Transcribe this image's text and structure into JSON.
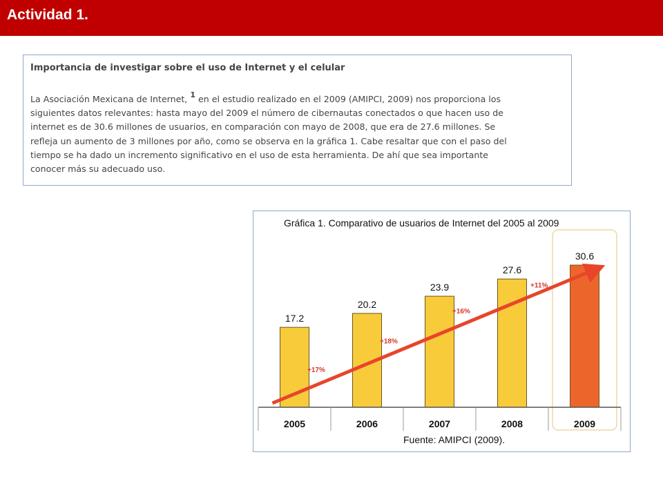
{
  "header": {
    "title": "Actividad 1."
  },
  "article": {
    "heading": "Importancia de investigar sobre el uso de Internet y el celular",
    "lines": [
      "La Asociación Mexicana de Internet, ",
      "1",
      " en el estudio realizado en el 2009 (AMIPCI, 2009) nos proporciona los",
      "siguientes datos relevantes: hasta mayo del 2009 el número de cibernautas conectados o que hacen uso de",
      "internet es de 30.6 millones de usuarios, en comparación con mayo de 2008, que era de 27.6 millones. Se",
      "refleja un aumento de 3 millones por año, como se observa en la gráfica 1. Cabe resaltar que con el paso del",
      "tiempo se ha dado un incremento significativo en el uso de esta herramienta. De ahí que sea importante",
      "conocer más su adecuado uso."
    ]
  },
  "chart_data": {
    "type": "bar",
    "title": "Gráfica 1. Comparativo de usuarios de Internet del 2005 al 2009",
    "source": "Fuente: AMIPCI (2009).",
    "categories": [
      "2005",
      "2006",
      "2007",
      "2008",
      "2009"
    ],
    "values": [
      17.2,
      20.2,
      23.9,
      27.6,
      30.6
    ],
    "value_labels": [
      "17.2",
      "20.2",
      "23.9",
      "27.6",
      "30.6"
    ],
    "growth_labels": [
      "+17%",
      "+18%",
      "+16%",
      "+11%"
    ],
    "ylim": [
      0,
      30.6
    ],
    "highlight_category": "2009",
    "colors": {
      "bar": "#f8cb3b",
      "highlight_bar": "#ec662b",
      "arrow": "#e8452a",
      "growth_text": "#d6372a",
      "highlight_frame": "#efd6a8",
      "axis": "#555555"
    }
  }
}
